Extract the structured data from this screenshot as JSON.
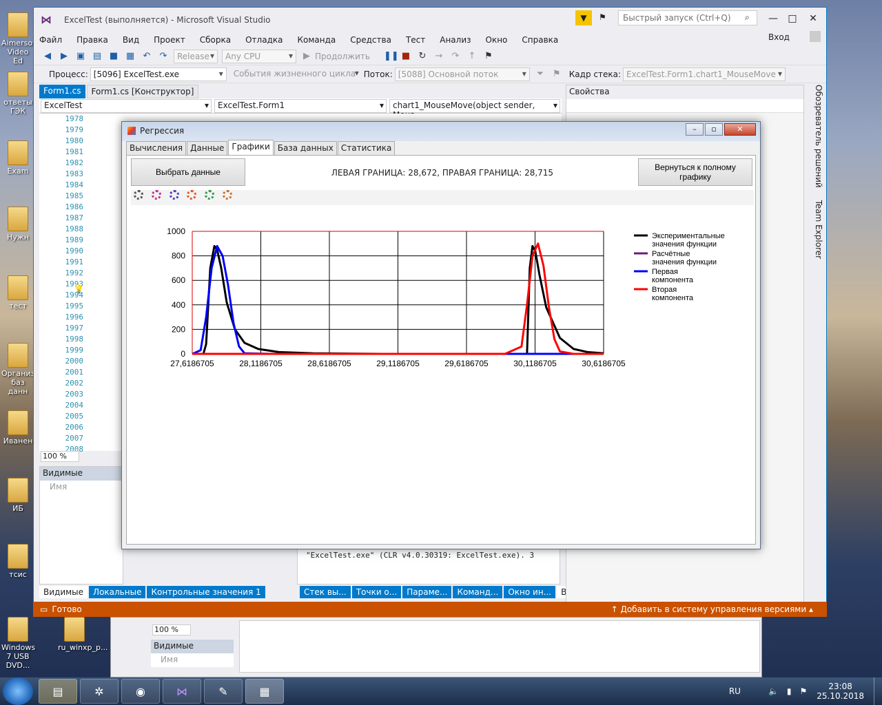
{
  "desktop": {
    "icons": [
      {
        "label": "Aimersoft Video Ed",
        "top": 18
      },
      {
        "label": "ответы ГЭК",
        "top": 104
      },
      {
        "label": "Exam",
        "top": 204
      },
      {
        "label": "Нужн",
        "top": 300
      },
      {
        "label": "тест",
        "top": 400
      },
      {
        "label": "Организ баз данн",
        "top": 498
      },
      {
        "label": "Иванен",
        "top": 596
      },
      {
        "label": "ИБ",
        "top": 694
      },
      {
        "label": "тсис",
        "top": 790
      },
      {
        "label": "Windows 7 USB DVD...",
        "top": 896
      },
      {
        "label": "ru_winxp_p...",
        "top": 896
      }
    ]
  },
  "vs": {
    "title": "ExcelTest (выполняется) - Microsoft Visual Studio",
    "quick_launch": "Быстрый запуск (Ctrl+Q)",
    "sign_in": "Вход",
    "menu": [
      "Файл",
      "Правка",
      "Вид",
      "Проект",
      "Сборка",
      "Отладка",
      "Команда",
      "Средства",
      "Тест",
      "Анализ",
      "Окно",
      "Справка"
    ],
    "toolbar": {
      "config": "Release",
      "platform": "Any CPU",
      "continue": "Продолжить"
    },
    "debugbar": {
      "process_label": "Процесс:",
      "process": "[5096] ExcelTest.exe",
      "lifecycle": "События жизненного цикла",
      "thread_label": "Поток:",
      "thread": "[5088] Основной поток",
      "stack_label": "Кадр стека:",
      "stack": "ExcelTest.Form1.chart1_MouseMove"
    },
    "doctabs": [
      "Form1.cs",
      "Form1.cs [Конструктор]"
    ],
    "nav": [
      "ExcelTest",
      "ExcelTest.Form1",
      "chart1_MouseMove(object sender, Mous"
    ],
    "line_numbers": [
      "1978",
      "1979",
      "1980",
      "1981",
      "1982",
      "1983",
      "1984",
      "1985",
      "1986",
      "1987",
      "1988",
      "1989",
      "1990",
      "1991",
      "1992",
      "1993",
      "1994",
      "1995",
      "1996",
      "1997",
      "1998",
      "1999",
      "2000",
      "2001",
      "2002",
      "2003",
      "2004",
      "2005",
      "2006",
      "2007",
      "2008"
    ],
    "zoom": "100 %",
    "props_title": "Свойства",
    "side_tabs": [
      "Обозреватель решений",
      "Team Explorer"
    ],
    "watch": {
      "title": "Видимые",
      "col": "Имя"
    },
    "watch_tabs": [
      "Видимые",
      "Локальные",
      "Контрольные значения 1"
    ],
    "output_text": "\"ExcelTest.exe\" (CLR v4.0.30319: ExcelTest.exe). З",
    "output_tabs": [
      "Стек вы...",
      "Точки о...",
      "Параме...",
      "Команд...",
      "Окно ин...",
      "Вывод"
    ],
    "status_left": "Готово",
    "status_right": "Добавить в систему управления версиями"
  },
  "form": {
    "title": "Регрессия",
    "tabs": [
      "Вычисления",
      "Данные",
      "Графики",
      "База данных",
      "Статистика"
    ],
    "select_button": "Выбрать данные",
    "bounds_text": "ЛЕВАЯ ГРАНИЦА: 28,672, ПРАВАЯ ГРАНИЦА: 28,715",
    "reset_button": "Вернуться к полному графику"
  },
  "chart_data": {
    "type": "line",
    "title": "",
    "xlabel": "",
    "ylabel": "",
    "xlim": [
      27.6186705,
      30.6186705
    ],
    "ylim": [
      0,
      1000
    ],
    "x_ticks": [
      "27,6186705",
      "28,1186705",
      "28,6186705",
      "29,1186705",
      "29,6186705",
      "30,1186705",
      "30,6186705"
    ],
    "y_ticks": [
      "0",
      "200",
      "400",
      "600",
      "800",
      "1000"
    ],
    "legend_position": "right",
    "series": [
      {
        "name": "Экспериментальные значения функции",
        "color": "#000000",
        "lines": [
          "Экспериментальные",
          "значения функции"
        ],
        "x": [
          27.62,
          27.7,
          27.72,
          27.75,
          27.78,
          27.8,
          27.83,
          27.87,
          27.93,
          28.0,
          28.1,
          28.25,
          28.5,
          29.0,
          29.5,
          30.0,
          30.06,
          30.08,
          30.1,
          30.12,
          30.15,
          30.2,
          30.3,
          30.4,
          30.5,
          30.6186705
        ],
        "y": [
          0,
          0,
          80,
          700,
          880,
          850,
          700,
          420,
          200,
          90,
          40,
          15,
          5,
          0,
          0,
          0,
          0,
          700,
          880,
          840,
          650,
          380,
          130,
          40,
          15,
          5
        ]
      },
      {
        "name": "Расчётные значения функции",
        "color": "#6a1b7a",
        "lines": [
          "Расчётные",
          "значения функции"
        ],
        "x": [],
        "y": []
      },
      {
        "name": "Первая компонента",
        "color": "#0000ff",
        "lines": [
          "Первая",
          "компонента"
        ],
        "x": [
          27.62,
          27.68,
          27.72,
          27.76,
          27.8,
          27.84,
          27.88,
          27.92,
          27.96,
          28.0,
          28.2,
          30.6186705
        ],
        "y": [
          0,
          30,
          300,
          700,
          880,
          800,
          560,
          250,
          60,
          5,
          0,
          0
        ]
      },
      {
        "name": "Вторая компонента",
        "color": "#ff0000",
        "lines": [
          "Вторая",
          "компонента"
        ],
        "x": [
          27.62,
          29.9,
          30.02,
          30.06,
          30.1,
          30.14,
          30.18,
          30.22,
          30.26,
          30.3,
          30.4,
          30.6186705
        ],
        "y": [
          0,
          0,
          60,
          400,
          800,
          900,
          720,
          380,
          120,
          20,
          0,
          0
        ]
      }
    ]
  },
  "taskbar": {
    "lang": "RU",
    "time": "23:08",
    "date": "25.10.2018"
  }
}
